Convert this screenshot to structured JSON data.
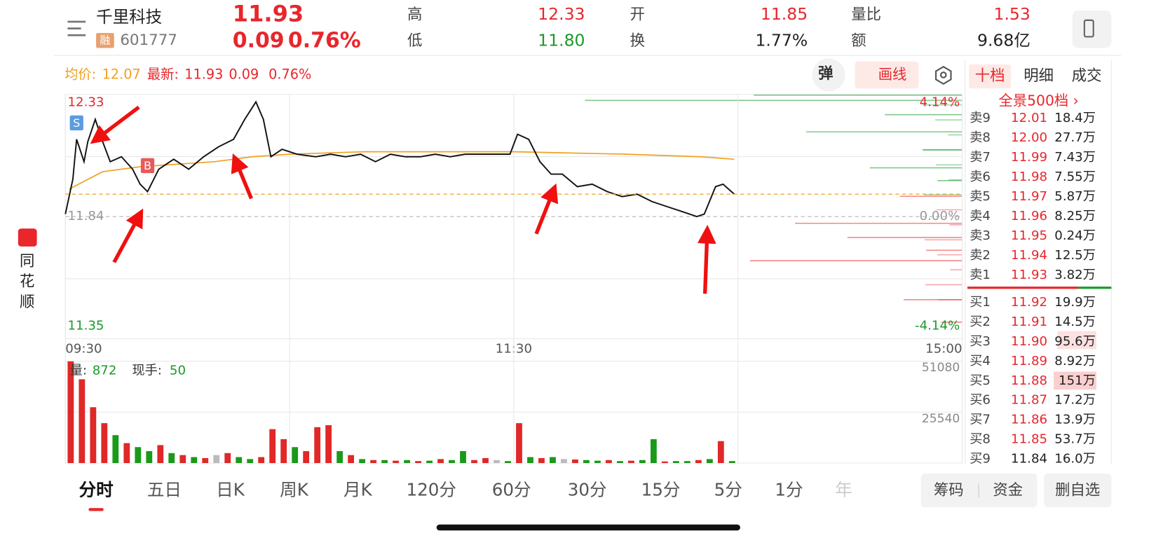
{
  "header": {
    "name": "千里科技",
    "tag": "融",
    "code": "601777",
    "price": "11.93",
    "change": "0.09",
    "change_pct": "0.76%",
    "stats": [
      {
        "label": "高",
        "value": "12.33",
        "color": "#e8262c"
      },
      {
        "label": "低",
        "value": "11.80",
        "color": "#1a9a2a"
      },
      {
        "label": "开",
        "value": "11.85",
        "color": "#e8262c"
      },
      {
        "label": "换",
        "value": "1.77%",
        "color": "#222222"
      },
      {
        "label": "量比",
        "value": "1.53",
        "color": "#e8262c"
      },
      {
        "label": "额",
        "value": "9.68亿",
        "color": "#222222"
      }
    ]
  },
  "info_bar": {
    "avg_label": "均价:",
    "avg": "12.07",
    "latest_label": "最新:",
    "latest": "11.93",
    "change": "0.09",
    "change_pct": "0.76%",
    "buttons": [
      "弹",
      "画线"
    ]
  },
  "side_brand": [
    "同",
    "花",
    "顺"
  ],
  "order_book": {
    "tabs": [
      "十档",
      "明细",
      "成交"
    ],
    "link": "全景500档 ›",
    "sell": [
      {
        "label": "卖9",
        "price": "12.01",
        "volume": "18.4万",
        "color": "#e8262c"
      },
      {
        "label": "卖8",
        "price": "12.00",
        "volume": "27.7万",
        "color": "#e8262c"
      },
      {
        "label": "卖7",
        "price": "11.99",
        "volume": "7.43万",
        "color": "#e8262c"
      },
      {
        "label": "卖6",
        "price": "11.98",
        "volume": "7.55万",
        "color": "#e8262c"
      },
      {
        "label": "卖5",
        "price": "11.97",
        "volume": "5.87万",
        "color": "#e8262c"
      },
      {
        "label": "卖4",
        "price": "11.96",
        "volume": "8.25万",
        "color": "#e8262c"
      },
      {
        "label": "卖3",
        "price": "11.95",
        "volume": "0.24万",
        "color": "#e8262c"
      },
      {
        "label": "卖2",
        "price": "11.94",
        "volume": "12.5万",
        "color": "#e8262c"
      },
      {
        "label": "卖1",
        "price": "11.93",
        "volume": "3.82万",
        "color": "#e8262c"
      }
    ],
    "buy": [
      {
        "label": "买1",
        "price": "11.92",
        "volume": "19.9万",
        "color": "#e8262c"
      },
      {
        "label": "买2",
        "price": "11.91",
        "volume": "14.5万",
        "color": "#e8262c"
      },
      {
        "label": "买3",
        "price": "11.90",
        "volume": "95.6万",
        "color": "#e8262c"
      },
      {
        "label": "买4",
        "price": "11.89",
        "volume": "8.92万",
        "color": "#e8262c"
      },
      {
        "label": "买5",
        "price": "11.88",
        "volume": "151万",
        "color": "#e8262c"
      },
      {
        "label": "买6",
        "price": "11.87",
        "volume": "17.2万",
        "color": "#e8262c"
      },
      {
        "label": "买7",
        "price": "11.86",
        "volume": "13.9万",
        "color": "#e8262c"
      },
      {
        "label": "买8",
        "price": "11.85",
        "volume": "53.7万",
        "color": "#e8262c"
      },
      {
        "label": "买9",
        "price": "11.84",
        "volume": "16.0万",
        "color": "#222222"
      }
    ]
  },
  "chart_data": {
    "type": "line",
    "xlim": [
      0,
      240
    ],
    "xticks": [
      {
        "value": 0,
        "label": "09:30"
      },
      {
        "value": 120,
        "label": "11:30"
      },
      {
        "value": 240,
        "label": "15:00"
      }
    ],
    "ylim": [
      11.35,
      12.33
    ],
    "yticks": [
      12.33,
      11.84,
      11.35
    ],
    "ytick_colors": [
      "#e8262c",
      "#999999",
      "#1a9a2a"
    ],
    "y2lim": [
      -4.14,
      4.14
    ],
    "y2ticks": [
      {
        "value": 4.14,
        "label": "4.14%"
      },
      {
        "value": 0,
        "label": "0.00%"
      },
      {
        "value": -4.14,
        "label": "-4.14%"
      }
    ],
    "annotations": [
      {
        "label": "S",
        "x": 3,
        "color": "#5b9be0"
      },
      {
        "label": "B",
        "x": 22,
        "color": "#e85a5a"
      }
    ],
    "series": [
      {
        "name": "price",
        "color": "#111111",
        "x": [
          0,
          2,
          3,
          5,
          6,
          8,
          10,
          12,
          15,
          18,
          20,
          22,
          25,
          29,
          33,
          37,
          41,
          45,
          48,
          51,
          53,
          55,
          58,
          62,
          67,
          71,
          75,
          79,
          83,
          87,
          91,
          95,
          99,
          103,
          107,
          111,
          115,
          119,
          121,
          124,
          127,
          130,
          133,
          137,
          141,
          145,
          149,
          153,
          157,
          161,
          165,
          169,
          171,
          174,
          176,
          179
        ],
        "values": [
          11.85,
          11.99,
          12.15,
          12.06,
          12.14,
          12.23,
          12.14,
          12.06,
          12.08,
          12.03,
          11.97,
          11.94,
          12.03,
          12.07,
          12.03,
          12.08,
          12.12,
          12.15,
          12.23,
          12.3,
          12.23,
          12.08,
          12.11,
          12.09,
          12.08,
          12.09,
          12.08,
          12.09,
          12.06,
          12.09,
          12.08,
          12.08,
          12.09,
          12.08,
          12.09,
          12.09,
          12.09,
          12.09,
          12.17,
          12.15,
          12.06,
          12.01,
          12.01,
          11.96,
          11.97,
          11.94,
          11.92,
          11.93,
          11.9,
          11.88,
          11.86,
          11.84,
          11.85,
          11.96,
          11.97,
          11.93
        ]
      },
      {
        "name": "average",
        "color": "#f0a020",
        "x": [
          1,
          10,
          20,
          30,
          40,
          50,
          60,
          80,
          120,
          150,
          170,
          179
        ],
        "values": [
          11.95,
          12.02,
          12.04,
          12.05,
          12.06,
          12.08,
          12.09,
          12.1,
          12.1,
          12.09,
          12.08,
          12.07
        ]
      }
    ],
    "volume": {
      "label": "量:",
      "last": "872",
      "hand_label": "现手:",
      "hand": "50",
      "ylim": [
        0,
        51080
      ],
      "yticks": [
        51080,
        25540
      ],
      "x_step": 3,
      "values": [
        51000,
        42000,
        28000,
        20000,
        14000,
        10000,
        8000,
        6000,
        9000,
        5000,
        4000,
        3000,
        2500,
        4000,
        5000,
        3000,
        2000,
        3000,
        17000,
        12000,
        8000,
        6000,
        18000,
        19000,
        6000,
        4000,
        2000,
        1500,
        1500,
        1200,
        1500,
        1000,
        1200,
        2000,
        1500,
        6000,
        1500,
        2500,
        1500,
        1000,
        20000,
        3000,
        2500,
        3000,
        2000,
        1800,
        1500,
        1200,
        1500,
        1000,
        1200,
        1500,
        12000,
        800,
        1000,
        1000,
        1500,
        2000,
        11000,
        1000
      ],
      "colors": [
        "#e02828",
        "#e02828",
        "#e02828",
        "#e02828",
        "#1a9a1a",
        "#e02828",
        "#1a9a1a",
        "#1a9a1a",
        "#e02828",
        "#1a9a1a",
        "#e02828",
        "#1a9a1a",
        "#e02828",
        "#bbbbbb",
        "#e02828",
        "#1a9a1a",
        "#1a9a1a",
        "#e02828",
        "#e02828",
        "#e02828",
        "#1a9a1a",
        "#e02828",
        "#e02828",
        "#e02828",
        "#1a9a1a",
        "#e02828",
        "#1a9a1a",
        "#e02828",
        "#1a9a1a",
        "#e02828",
        "#1a9a1a",
        "#e02828",
        "#1a9a1a",
        "#e02828",
        "#1a9a1a",
        "#1a9a1a",
        "#e02828",
        "#e02828",
        "#bbbbbb",
        "#1a9a1a",
        "#e02828",
        "#1a9a1a",
        "#e02828",
        "#1a9a1a",
        "#bbbbbb",
        "#e02828",
        "#1a9a1a",
        "#1a9a1a",
        "#e02828",
        "#1a9a1a",
        "#e02828",
        "#1a9a1a",
        "#1a9a1a",
        "#e02828",
        "#1a9a1a",
        "#1a9a1a",
        "#e02828",
        "#1a9a1a",
        "#e02828",
        "#1a9a1a"
      ]
    }
  },
  "bottom_tabs": [
    "分时",
    "五日",
    "日K",
    "周K",
    "月K",
    "120分",
    "60分",
    "30分",
    "15分",
    "5分",
    "1分",
    "年"
  ],
  "bottom_buttons": [
    "筹码",
    "资金",
    "删自选"
  ]
}
